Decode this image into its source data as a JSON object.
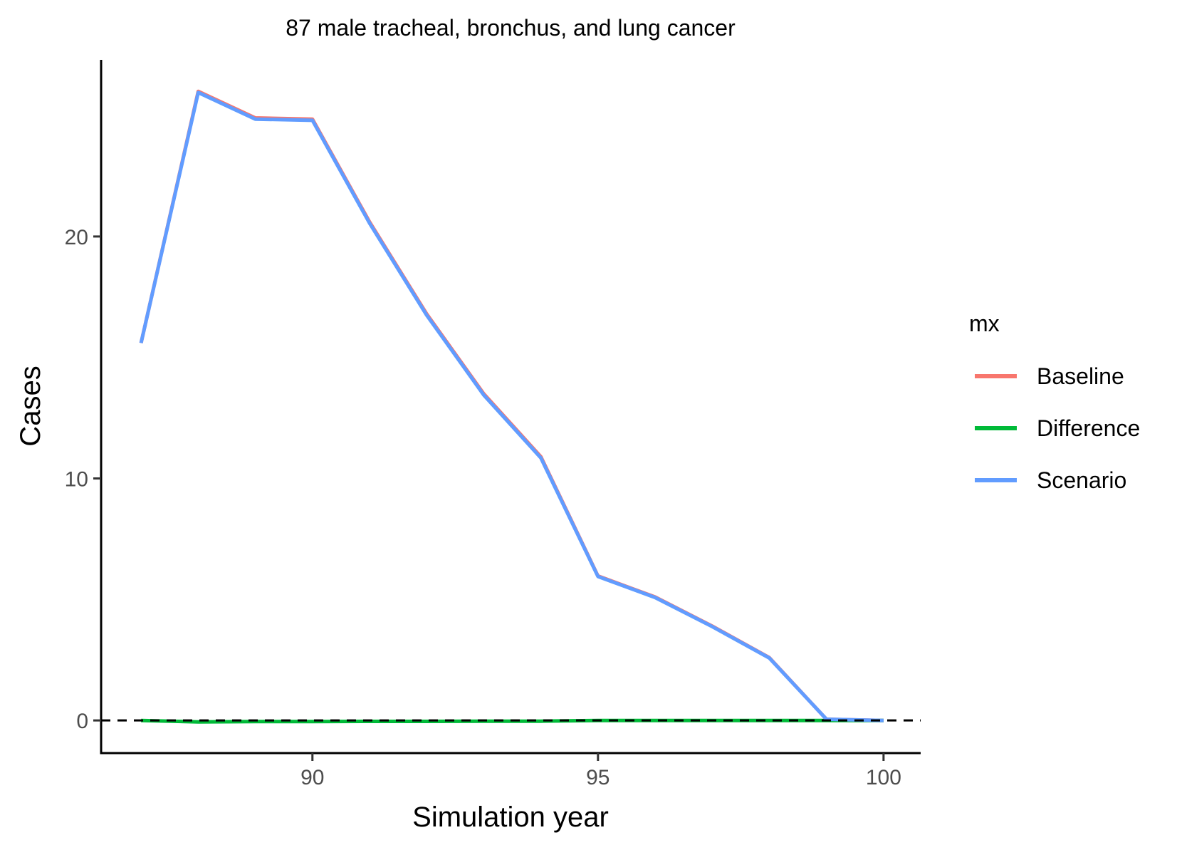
{
  "chart_data": {
    "type": "line",
    "title": "87 male tracheal, bronchus, and lung cancer",
    "xlabel": "Simulation year",
    "ylabel": "Cases",
    "xlim": [
      86.3,
      100.65
    ],
    "ylim": [
      -1.35,
      27.3
    ],
    "x_ticks": [
      90,
      95,
      100
    ],
    "y_ticks": [
      0,
      10,
      20
    ],
    "grid": false,
    "reference_line": {
      "y": 0,
      "style": "dashed",
      "color": "#000000"
    },
    "legend": {
      "title": "mx",
      "position": "right"
    },
    "x": [
      87,
      88,
      89,
      90,
      91,
      92,
      93,
      94,
      95,
      96,
      97,
      98,
      99,
      100
    ],
    "series": [
      {
        "name": "Baseline",
        "color": "#F8766D",
        "values": [
          15.6,
          26.0,
          24.9,
          24.85,
          20.6,
          16.8,
          13.5,
          10.9,
          5.97,
          5.1,
          3.9,
          2.6,
          0.05,
          0.0
        ]
      },
      {
        "name": "Difference",
        "color": "#00BA38",
        "values": [
          0.0,
          -0.06,
          -0.05,
          -0.05,
          -0.04,
          -0.04,
          -0.03,
          -0.03,
          0.0,
          0.0,
          0.0,
          0.0,
          0.0,
          0.0
        ]
      },
      {
        "name": "Scenario",
        "color": "#619CFF",
        "values": [
          15.6,
          25.95,
          24.85,
          24.8,
          20.55,
          16.75,
          13.45,
          10.85,
          5.95,
          5.08,
          3.88,
          2.58,
          0.05,
          0.0
        ]
      }
    ]
  }
}
